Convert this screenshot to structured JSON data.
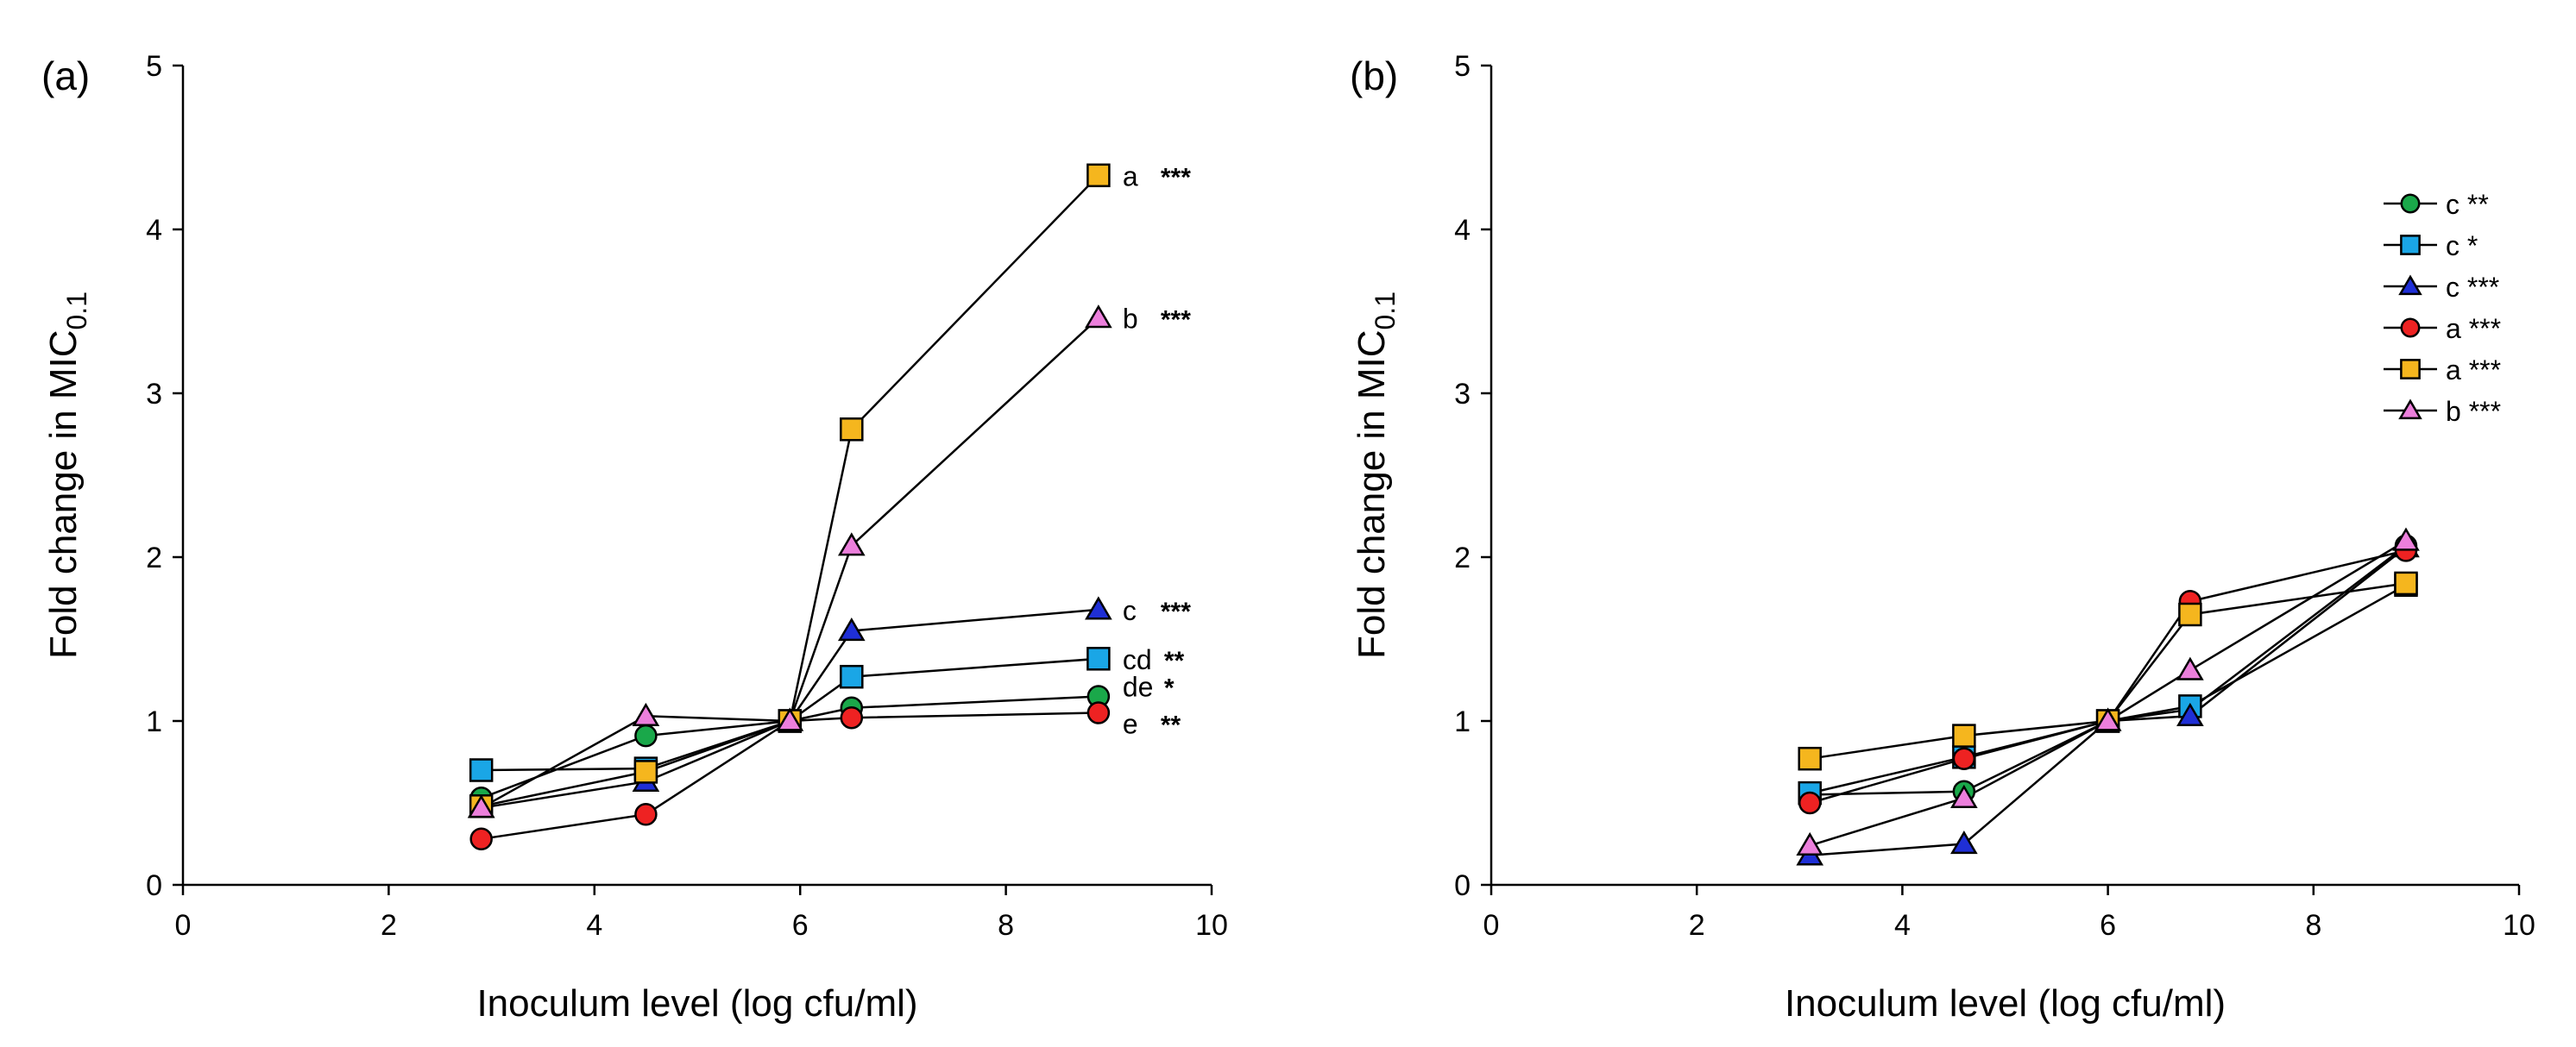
{
  "chart_data": [
    {
      "panel_label": "(a)",
      "type": "line",
      "xlabel": "Inoculum level (log cfu/ml)",
      "ylabel_main": "Fold change in MIC",
      "ylabel_sub": "0.1",
      "xlim": [
        0,
        10
      ],
      "ylim": [
        0,
        5
      ],
      "xticks": [
        "0",
        "2",
        "4",
        "6",
        "8",
        "10"
      ],
      "yticks": [
        "0",
        "1",
        "2",
        "3",
        "4",
        "5"
      ],
      "legend": false,
      "series": [
        {
          "name": "green circle",
          "marker": "circle",
          "color": "#1aa84a",
          "x": [
            2.9,
            4.5,
            5.9,
            6.5,
            8.9
          ],
          "y": [
            0.53,
            0.91,
            1.0,
            1.08,
            1.15
          ],
          "end_letter": "de",
          "end_stars": "*"
        },
        {
          "name": "blue square",
          "marker": "square",
          "color": "#1aa6e6",
          "x": [
            2.9,
            4.5,
            5.9,
            6.5,
            8.9
          ],
          "y": [
            0.7,
            0.71,
            1.0,
            1.27,
            1.38
          ],
          "end_letter": "cd",
          "end_stars": "**"
        },
        {
          "name": "navy triangle",
          "marker": "triangle",
          "color": "#1f2fd6",
          "x": [
            2.9,
            4.5,
            5.9,
            6.5,
            8.9
          ],
          "y": [
            0.47,
            0.63,
            1.0,
            1.55,
            1.68
          ],
          "end_letter": "c",
          "end_stars": "***"
        },
        {
          "name": "red circle",
          "marker": "circle",
          "color": "#ee2222",
          "x": [
            2.9,
            4.5,
            5.9,
            6.5,
            8.9
          ],
          "y": [
            0.28,
            0.43,
            1.0,
            1.02,
            1.05
          ],
          "end_letter": "e",
          "end_stars": "**"
        },
        {
          "name": "orange square",
          "marker": "square",
          "color": "#f5b61e",
          "x": [
            2.9,
            4.5,
            5.9,
            6.5,
            8.9
          ],
          "y": [
            0.48,
            0.69,
            1.0,
            2.78,
            4.33
          ],
          "end_letter": "a",
          "end_stars": "***"
        },
        {
          "name": "pink triangle",
          "marker": "triangle",
          "color": "#ec7fdc",
          "x": [
            2.9,
            4.5,
            5.9,
            6.5,
            8.9
          ],
          "y": [
            0.47,
            1.03,
            1.0,
            2.07,
            3.46
          ],
          "end_letter": "b",
          "end_stars": "***"
        }
      ]
    },
    {
      "panel_label": "(b)",
      "type": "line",
      "xlabel": "Inoculum level (log cfu/ml)",
      "ylabel_main": "Fold change in MIC",
      "ylabel_sub": "0.1",
      "xlim": [
        0,
        10
      ],
      "ylim": [
        0,
        5
      ],
      "xticks": [
        "0",
        "2",
        "4",
        "6",
        "8",
        "10"
      ],
      "yticks": [
        "0",
        "1",
        "2",
        "3",
        "4",
        "5"
      ],
      "legend": true,
      "legend_position": "top-right",
      "series": [
        {
          "name": "green circle",
          "marker": "circle",
          "color": "#1aa84a",
          "x": [
            3.1,
            4.6,
            6.0,
            6.8,
            8.9
          ],
          "y": [
            0.55,
            0.57,
            1.0,
            1.07,
            2.07
          ],
          "legend_label": "c **"
        },
        {
          "name": "blue square",
          "marker": "square",
          "color": "#1aa6e6",
          "x": [
            3.1,
            4.6,
            6.0,
            6.8,
            8.9
          ],
          "y": [
            0.56,
            0.78,
            1.0,
            1.09,
            1.83
          ],
          "legend_label": "c *"
        },
        {
          "name": "navy triangle",
          "marker": "triangle",
          "color": "#1f2fd6",
          "x": [
            3.1,
            4.6,
            6.0,
            6.8,
            8.9
          ],
          "y": [
            0.18,
            0.25,
            1.0,
            1.03,
            2.06
          ],
          "legend_label": "c ***"
        },
        {
          "name": "red circle",
          "marker": "circle",
          "color": "#ee2222",
          "x": [
            3.1,
            4.6,
            6.0,
            6.8,
            8.9
          ],
          "y": [
            0.5,
            0.77,
            1.0,
            1.73,
            2.04
          ],
          "legend_label": "a ***"
        },
        {
          "name": "orange square",
          "marker": "square",
          "color": "#f5b61e",
          "x": [
            3.1,
            4.6,
            6.0,
            6.8,
            8.9
          ],
          "y": [
            0.77,
            0.91,
            1.0,
            1.65,
            1.84
          ],
          "legend_label": "a ***"
        },
        {
          "name": "pink triangle",
          "marker": "triangle",
          "color": "#ec7fdc",
          "x": [
            3.1,
            4.6,
            6.0,
            6.8,
            8.9
          ],
          "y": [
            0.24,
            0.53,
            1.0,
            1.31,
            2.1
          ],
          "legend_label": "b ***"
        }
      ]
    }
  ]
}
